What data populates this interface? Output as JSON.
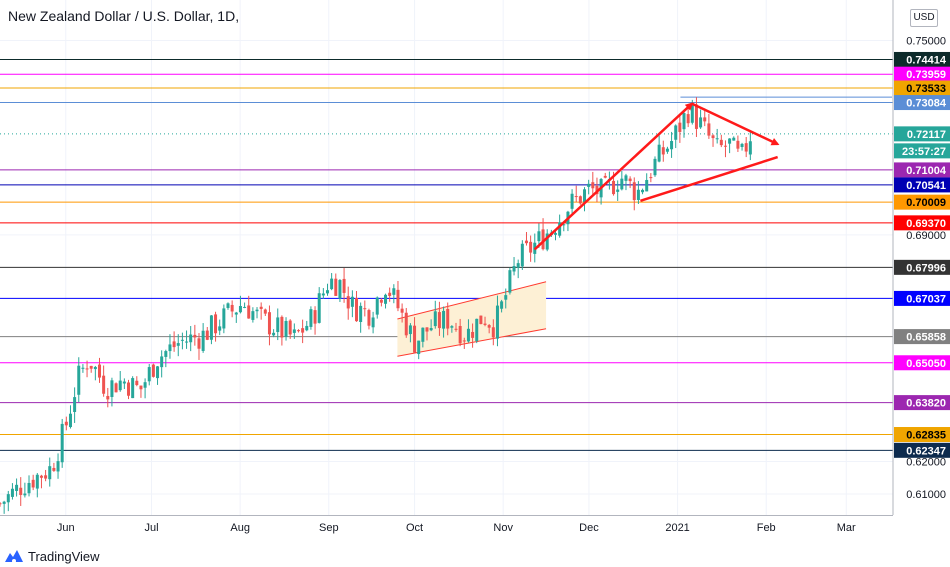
{
  "chart_data": {
    "type": "candlestick",
    "title": "New Zealand Dollar / U.S. Dollar, 1D,",
    "currency_button": "USD",
    "ylim": [
      0.6035,
      0.7625
    ],
    "y_ticks": [
      "0.61000",
      "0.62000",
      "0.69000",
      "0.75000"
    ],
    "x_ticks": [
      {
        "label": "Jun",
        "day": 0
      },
      {
        "label": "Jul",
        "day": 30
      },
      {
        "label": "Aug",
        "day": 61
      },
      {
        "label": "Sep",
        "day": 92
      },
      {
        "label": "Oct",
        "day": 122
      },
      {
        "label": "Nov",
        "day": 153
      },
      {
        "label": "Dec",
        "day": 183
      },
      {
        "label": "2021",
        "day": 214
      },
      {
        "label": "Feb",
        "day": 245
      },
      {
        "label": "Mar",
        "day": 273
      }
    ],
    "x_range_days": [
      -23,
      289
    ],
    "levels": [
      {
        "value": 0.74414,
        "label": "0.74414",
        "color": "#0d2b2b",
        "text": "#ffffff"
      },
      {
        "value": 0.73959,
        "label": "0.73959",
        "color": "#ff00ff",
        "text": "#ffffff"
      },
      {
        "value": 0.73533,
        "label": "0.73533",
        "color": "#f0a500",
        "text": "#000000"
      },
      {
        "value": 0.73084,
        "label": "0.73084",
        "color": "#5b8ed6",
        "text": "#ffffff"
      },
      {
        "value": 0.71004,
        "label": "0.71004",
        "color": "#9c27b0",
        "text": "#ffffff"
      },
      {
        "value": 0.70541,
        "label": "0.70541",
        "color": "#0000b3",
        "text": "#ffffff"
      },
      {
        "value": 0.70009,
        "label": "0.70009",
        "color": "#ff9800",
        "text": "#000000"
      },
      {
        "value": 0.6937,
        "label": "0.69370",
        "color": "#ff0000",
        "text": "#ffffff"
      },
      {
        "value": 0.67996,
        "label": "0.67996",
        "color": "#333333",
        "text": "#ffffff"
      },
      {
        "value": 0.67037,
        "label": "0.67037",
        "color": "#0000ff",
        "text": "#ffffff"
      },
      {
        "value": 0.65858,
        "label": "0.65858",
        "color": "#808080",
        "text": "#ffffff"
      },
      {
        "value": 0.6505,
        "label": "0.65050",
        "color": "#ff00ff",
        "text": "#ffffff"
      },
      {
        "value": 0.6382,
        "label": "0.63820",
        "color": "#9c27b0",
        "text": "#ffffff"
      },
      {
        "value": 0.62835,
        "label": "0.62835",
        "color": "#f0a500",
        "text": "#000000"
      },
      {
        "value": 0.62347,
        "label": "0.62347",
        "color": "#0d2b4e",
        "text": "#ffffff"
      }
    ],
    "current_price": {
      "value": "0.72117",
      "countdown": "23:57:27",
      "color": "#26a69a"
    },
    "anchors": [
      {
        "day": -23,
        "price": 0.607
      },
      {
        "day": -15,
        "price": 0.613
      },
      {
        "day": -5,
        "price": 0.618
      },
      {
        "day": 0,
        "price": 0.631
      },
      {
        "day": 4,
        "price": 0.645
      },
      {
        "day": 8,
        "price": 0.652
      },
      {
        "day": 14,
        "price": 0.643
      },
      {
        "day": 20,
        "price": 0.645
      },
      {
        "day": 26,
        "price": 0.642
      },
      {
        "day": 32,
        "price": 0.652
      },
      {
        "day": 40,
        "price": 0.657
      },
      {
        "day": 48,
        "price": 0.659
      },
      {
        "day": 56,
        "price": 0.665
      },
      {
        "day": 62,
        "price": 0.669
      },
      {
        "day": 68,
        "price": 0.664
      },
      {
        "day": 74,
        "price": 0.661
      },
      {
        "day": 80,
        "price": 0.658
      },
      {
        "day": 86,
        "price": 0.664
      },
      {
        "day": 92,
        "price": 0.676
      },
      {
        "day": 96,
        "price": 0.675
      },
      {
        "day": 100,
        "price": 0.668
      },
      {
        "day": 106,
        "price": 0.666
      },
      {
        "day": 112,
        "price": 0.675
      },
      {
        "day": 116,
        "price": 0.668
      },
      {
        "day": 122,
        "price": 0.657
      },
      {
        "day": 128,
        "price": 0.662
      },
      {
        "day": 134,
        "price": 0.664
      },
      {
        "day": 140,
        "price": 0.659
      },
      {
        "day": 146,
        "price": 0.665
      },
      {
        "day": 150,
        "price": 0.662
      },
      {
        "day": 153,
        "price": 0.669
      },
      {
        "day": 158,
        "price": 0.682
      },
      {
        "day": 164,
        "price": 0.687
      },
      {
        "day": 170,
        "price": 0.692
      },
      {
        "day": 176,
        "price": 0.699
      },
      {
        "day": 183,
        "price": 0.704
      },
      {
        "day": 188,
        "price": 0.703
      },
      {
        "day": 194,
        "price": 0.708
      },
      {
        "day": 200,
        "price": 0.703
      },
      {
        "day": 206,
        "price": 0.712
      },
      {
        "day": 212,
        "price": 0.719
      },
      {
        "day": 218,
        "price": 0.729
      },
      {
        "day": 222,
        "price": 0.724
      },
      {
        "day": 228,
        "price": 0.716
      },
      {
        "day": 232,
        "price": 0.718
      },
      {
        "day": 236,
        "price": 0.713
      },
      {
        "day": 240,
        "price": 0.722
      }
    ],
    "annotations": {
      "channel": {
        "color": "#ff3b30",
        "fill": "#fdf0d5",
        "from_day": 116,
        "to_day": 168,
        "lower": [
          0.6525,
          0.661
        ],
        "upper": [
          0.664,
          0.6755
        ]
      },
      "arrow_up": {
        "from": [
          164,
          0.6855
        ],
        "to": [
          219,
          0.7305
        ]
      },
      "arrow_down": {
        "from": [
          219,
          0.7305
        ],
        "to": [
          249,
          0.718
        ]
      },
      "support_line": {
        "from": [
          201,
          0.7005
        ],
        "to": [
          249,
          0.714
        ]
      },
      "recent_high_line": {
        "from": [
          215,
          0.7325
        ],
        "to": [
          289,
          0.7325
        ],
        "color": "#5b8ed6"
      },
      "current_line_color": "#26a69a"
    }
  },
  "footer": {
    "brand": "TradingView"
  }
}
